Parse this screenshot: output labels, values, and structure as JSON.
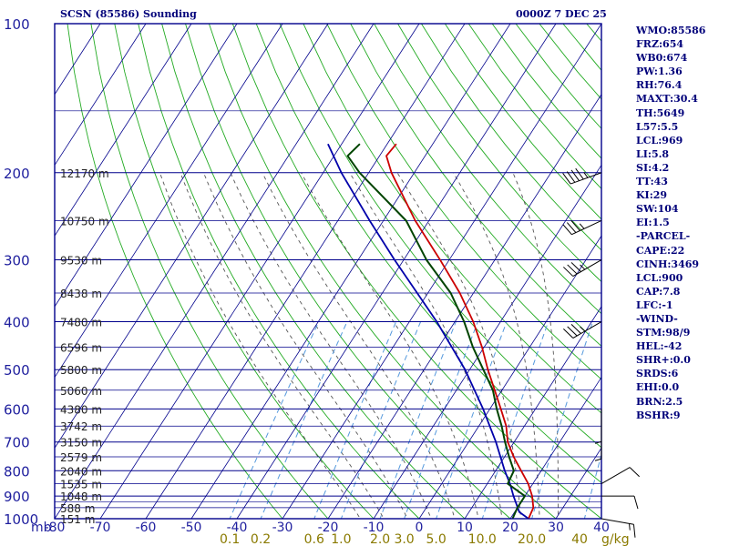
{
  "title_left": "SCSN (85586) Sounding",
  "title_right": "0000Z  7 DEC 25",
  "colors": {
    "grid": "#00008b",
    "isotherm": "#00008b",
    "dry_adiabat": "#22aa22",
    "moist_adiabat": "#555555",
    "mixing_ratio": "#5599dd",
    "temperature": "#cc0000",
    "dewpoint": "#004400",
    "parcel": "#0000aa",
    "text": "#00007a",
    "mixing_label": "#8a7a00"
  },
  "side_panel": [
    "WMO:85586",
    "FRZ:654",
    "WB0:674",
    "PW:1.36",
    "RH:76.4",
    "MAXT:30.4",
    "TH:5649",
    "L57:5.5",
    "LCL:969",
    "LI:5.8",
    "SI:4.2",
    "TT:43",
    "KI:29",
    "SW:104",
    "EI:1.5",
    "-PARCEL-",
    "CAPE:22",
    "CINH:3469",
    "LCL:900",
    "CAP:7.8",
    "LFC:-1",
    "-WIND-",
    "STM:98/9",
    "HEL:-42",
    "SHR+:0.0",
    "SRDS:6",
    "EHI:0.0",
    "BRN:2.5",
    "BSHR:9"
  ],
  "chart_data": {
    "type": "skew-t",
    "title": "SCSN (85586) Sounding",
    "time": "0000Z  7 DEC 25",
    "pressure_label": "mb",
    "pressure_levels": [
      100,
      200,
      300,
      400,
      500,
      600,
      700,
      800,
      900,
      1000
    ],
    "pressure_levels_minor": [
      150,
      250,
      350,
      450,
      550,
      650,
      750,
      850,
      925,
      950
    ],
    "temperature_ticks": [
      -80,
      -70,
      -60,
      -50,
      -40,
      -30,
      -20,
      -10,
      0,
      10,
      20,
      30,
      40
    ],
    "xlim": [
      -80,
      40
    ],
    "ylim_mb": [
      1000,
      100
    ],
    "skew_deg_per_decade": 70,
    "height_labels": [
      {
        "p": 200,
        "text": "12170 m"
      },
      {
        "p": 250,
        "text": "10750 m"
      },
      {
        "p": 300,
        "text": "9530 m"
      },
      {
        "p": 350,
        "text": "8438 m"
      },
      {
        "p": 400,
        "text": "7480 m"
      },
      {
        "p": 450,
        "text": "6596 m"
      },
      {
        "p": 500,
        "text": "5800 m"
      },
      {
        "p": 550,
        "text": "5060 m"
      },
      {
        "p": 600,
        "text": "4380 m"
      },
      {
        "p": 650,
        "text": "3742 m"
      },
      {
        "p": 700,
        "text": "3150 m"
      },
      {
        "p": 750,
        "text": "2579 m"
      },
      {
        "p": 800,
        "text": "2040 m"
      },
      {
        "p": 850,
        "text": "1535 m"
      },
      {
        "p": 900,
        "text": "1048 m"
      },
      {
        "p": 950,
        "text": "588 m"
      },
      {
        "p": 1000,
        "text": "151 m"
      }
    ],
    "mixing_ratio_labels": [
      {
        "w": 0.1,
        "label": "0.1"
      },
      {
        "w": 0.2,
        "label": "0.2"
      },
      {
        "w": 0.6,
        "label": "0.6"
      },
      {
        "w": 1.0,
        "label": "1.0"
      },
      {
        "w": 2.0,
        "label": "2.0"
      },
      {
        "w": 3.0,
        "label": "3.0"
      },
      {
        "w": 5.0,
        "label": "5.0"
      },
      {
        "w": 10.0,
        "label": "10.0"
      },
      {
        "w": 20.0,
        "label": "20.0"
      },
      {
        "w": 40.0,
        "label": "40"
      }
    ],
    "mixing_ratio_unit": "g/kg",
    "temperature_profile": [
      {
        "p": 1000,
        "t": 24.0
      },
      {
        "p": 950,
        "t": 23.5
      },
      {
        "p": 900,
        "t": 21.6
      },
      {
        "p": 850,
        "t": 19.0
      },
      {
        "p": 800,
        "t": 15.6
      },
      {
        "p": 750,
        "t": 12.0
      },
      {
        "p": 700,
        "t": 8.6
      },
      {
        "p": 650,
        "t": 6.0
      },
      {
        "p": 600,
        "t": 2.4
      },
      {
        "p": 550,
        "t": -1.6
      },
      {
        "p": 500,
        "t": -6.0
      },
      {
        "p": 450,
        "t": -10.5
      },
      {
        "p": 400,
        "t": -16.0
      },
      {
        "p": 350,
        "t": -23.0
      },
      {
        "p": 300,
        "t": -32.0
      },
      {
        "p": 250,
        "t": -43.0
      },
      {
        "p": 200,
        "t": -55.0
      },
      {
        "p": 185,
        "t": -58.5
      },
      {
        "p": 175,
        "t": -58.0
      }
    ],
    "dewpoint_profile": [
      {
        "p": 1000,
        "t": 20.5
      },
      {
        "p": 950,
        "t": 20.0
      },
      {
        "p": 900,
        "t": 20.0
      },
      {
        "p": 850,
        "t": 14.5
      },
      {
        "p": 800,
        "t": 14.0
      },
      {
        "p": 750,
        "t": 11.0
      },
      {
        "p": 700,
        "t": 8.0
      },
      {
        "p": 650,
        "t": 5.0
      },
      {
        "p": 600,
        "t": 1.5
      },
      {
        "p": 550,
        "t": -2.0
      },
      {
        "p": 500,
        "t": -7.0
      },
      {
        "p": 450,
        "t": -12.5
      },
      {
        "p": 400,
        "t": -18.0
      },
      {
        "p": 350,
        "t": -25.0
      },
      {
        "p": 300,
        "t": -35.0
      },
      {
        "p": 250,
        "t": -45.0
      },
      {
        "p": 200,
        "t": -62.0
      },
      {
        "p": 185,
        "t": -67.0
      },
      {
        "p": 175,
        "t": -66.0
      }
    ],
    "parcel_profile": [
      {
        "p": 1000,
        "t": 24.0
      },
      {
        "p": 969,
        "t": 21.0
      },
      {
        "p": 900,
        "t": 17.5
      },
      {
        "p": 850,
        "t": 15.0
      },
      {
        "p": 800,
        "t": 12.0
      },
      {
        "p": 700,
        "t": 6.0
      },
      {
        "p": 600,
        "t": -1.5
      },
      {
        "p": 500,
        "t": -11.0
      },
      {
        "p": 400,
        "t": -24.0
      },
      {
        "p": 300,
        "t": -42.0
      },
      {
        "p": 250,
        "t": -53.0
      },
      {
        "p": 200,
        "t": -66.0
      },
      {
        "p": 175,
        "t": -73.0
      }
    ],
    "wind_barbs": [
      {
        "p": 1000,
        "dir": 100,
        "kt": 15
      },
      {
        "p": 900,
        "dir": 90,
        "kt": 10
      },
      {
        "p": 850,
        "dir": 60,
        "kt": 10
      },
      {
        "p": 650,
        "dir": 180,
        "kt": 5
      },
      {
        "p": 600,
        "dir": 180,
        "kt": 5
      },
      {
        "p": 400,
        "dir": 240,
        "kt": 35
      },
      {
        "p": 300,
        "dir": 240,
        "kt": 35
      },
      {
        "p": 250,
        "dir": 245,
        "kt": 35
      },
      {
        "p": 200,
        "dir": 250,
        "kt": 45
      }
    ]
  }
}
